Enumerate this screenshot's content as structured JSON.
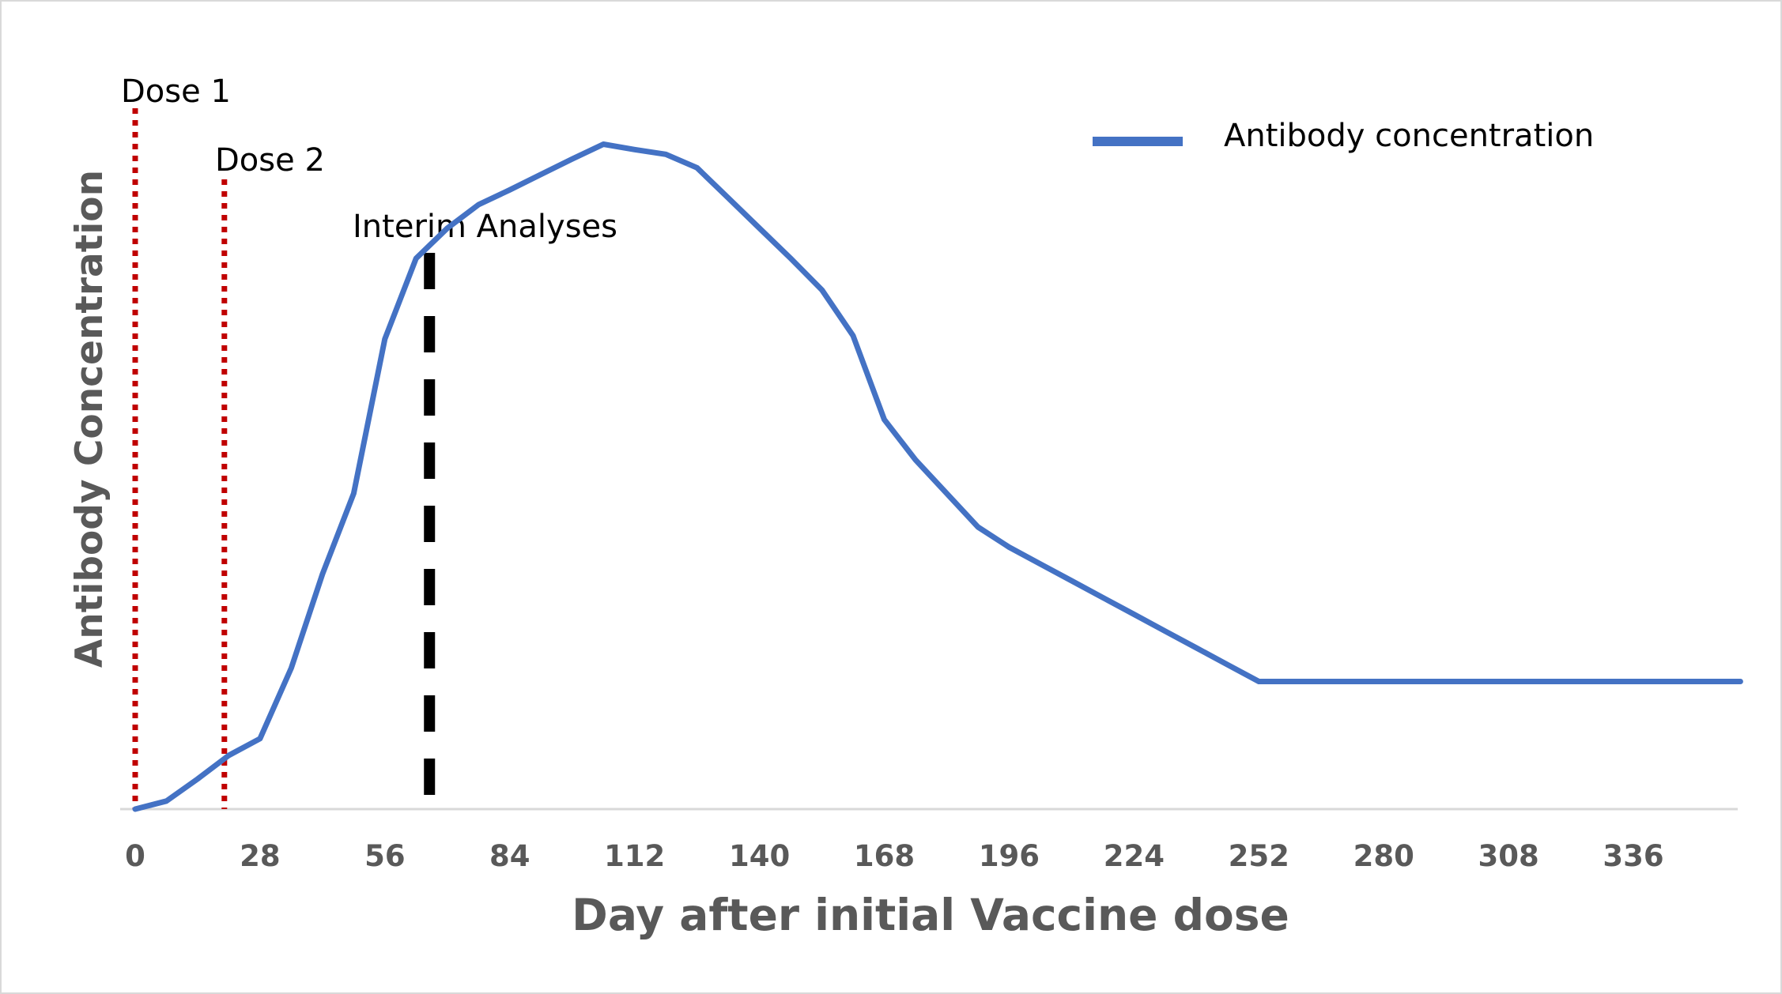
{
  "chart_data": {
    "type": "line",
    "title": "",
    "xlabel": "Day after initial Vaccine dose",
    "ylabel": "Antibody Concentration",
    "x_ticks": [
      0,
      28,
      56,
      84,
      112,
      140,
      168,
      196,
      224,
      252,
      280,
      308,
      336
    ],
    "xlim": [
      0,
      364
    ],
    "ylim": [
      0,
      100
    ],
    "y_axis_ticks_shown": false,
    "grid": false,
    "legend_position": "top-right",
    "series": [
      {
        "name": "Antibody concentration",
        "color": "#4472c4",
        "x": [
          0,
          7,
          14,
          21,
          28,
          35,
          42,
          49,
          56,
          63,
          70,
          77,
          84,
          91,
          98,
          105,
          112,
          119,
          126,
          133,
          140,
          147,
          154,
          161,
          168,
          175,
          182,
          189,
          196,
          203,
          210,
          217,
          224,
          231,
          238,
          245,
          252,
          259,
          266,
          273,
          280,
          287,
          294,
          301,
          308,
          315,
          322,
          329,
          336,
          343,
          350,
          357,
          360
        ],
        "y": [
          0,
          1.2,
          4.5,
          8,
          10.5,
          21,
          35,
          47,
          70,
          82,
          86.5,
          90,
          92.2,
          94.5,
          96.8,
          99,
          98.2,
          97.5,
          95.5,
          91,
          86.5,
          82,
          77.3,
          70.5,
          58,
          52,
          47,
          42,
          39,
          36.5,
          34,
          31.5,
          29,
          26.5,
          24,
          21.5,
          19,
          19,
          19,
          19,
          19,
          19,
          19,
          19,
          19,
          19,
          19,
          19,
          19,
          19,
          19,
          19,
          19
        ]
      }
    ],
    "annotations": [
      {
        "label": "Dose 1",
        "x": 0,
        "style": "dotted",
        "color": "#c00000"
      },
      {
        "label": "Dose 2",
        "x": 20,
        "style": "dotted",
        "color": "#c00000"
      },
      {
        "label": "Interim Analyses",
        "x": 66,
        "style": "dashed",
        "color": "#000000"
      }
    ]
  }
}
